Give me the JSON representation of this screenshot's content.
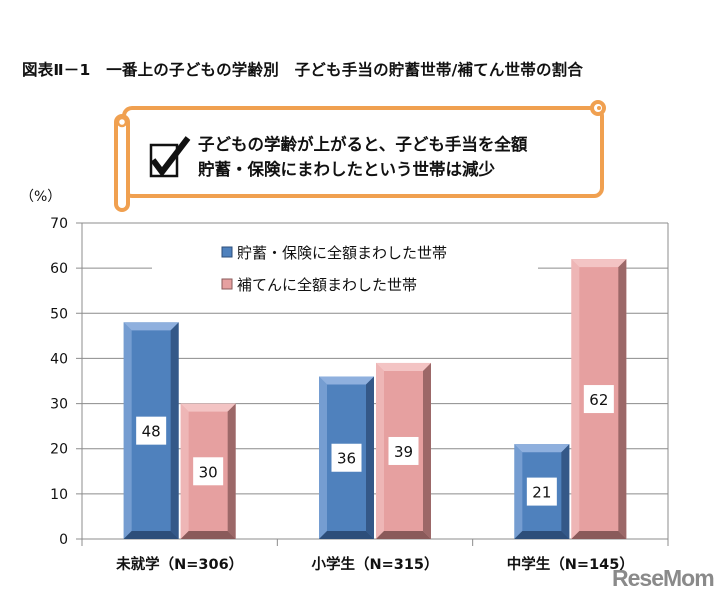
{
  "chart_data": {
    "type": "bar",
    "title": "図表Ⅱ－1　一番上の子どもの学齢別　子ども手当の貯蓄世帯/補てん世帯の割合",
    "ylabel": "（%）",
    "ylim": [
      0,
      70
    ],
    "yticks": [
      0,
      10,
      20,
      30,
      40,
      50,
      60,
      70
    ],
    "grid": true,
    "legend_position": "top-center",
    "categories": [
      "未就学（N=306）",
      "小学生（N=315）",
      "中学生（N=145）"
    ],
    "series": [
      {
        "name": "貯蓄・保険に全額まわした世帯",
        "values": [
          48,
          36,
          21
        ],
        "color": "#4f81bd"
      },
      {
        "name": "補てんに全額まわした世帯",
        "values": [
          30,
          39,
          62
        ],
        "color": "#e6a0a0"
      }
    ],
    "annotation": {
      "lines": [
        "子どもの学齢が上がると、子ども手当を全額",
        "貯蓄・保険にまわしたという世帯は減少"
      ],
      "icon": "checkbox-checked-icon",
      "border_color": "#f0a050"
    }
  },
  "watermark": "ReseMom"
}
